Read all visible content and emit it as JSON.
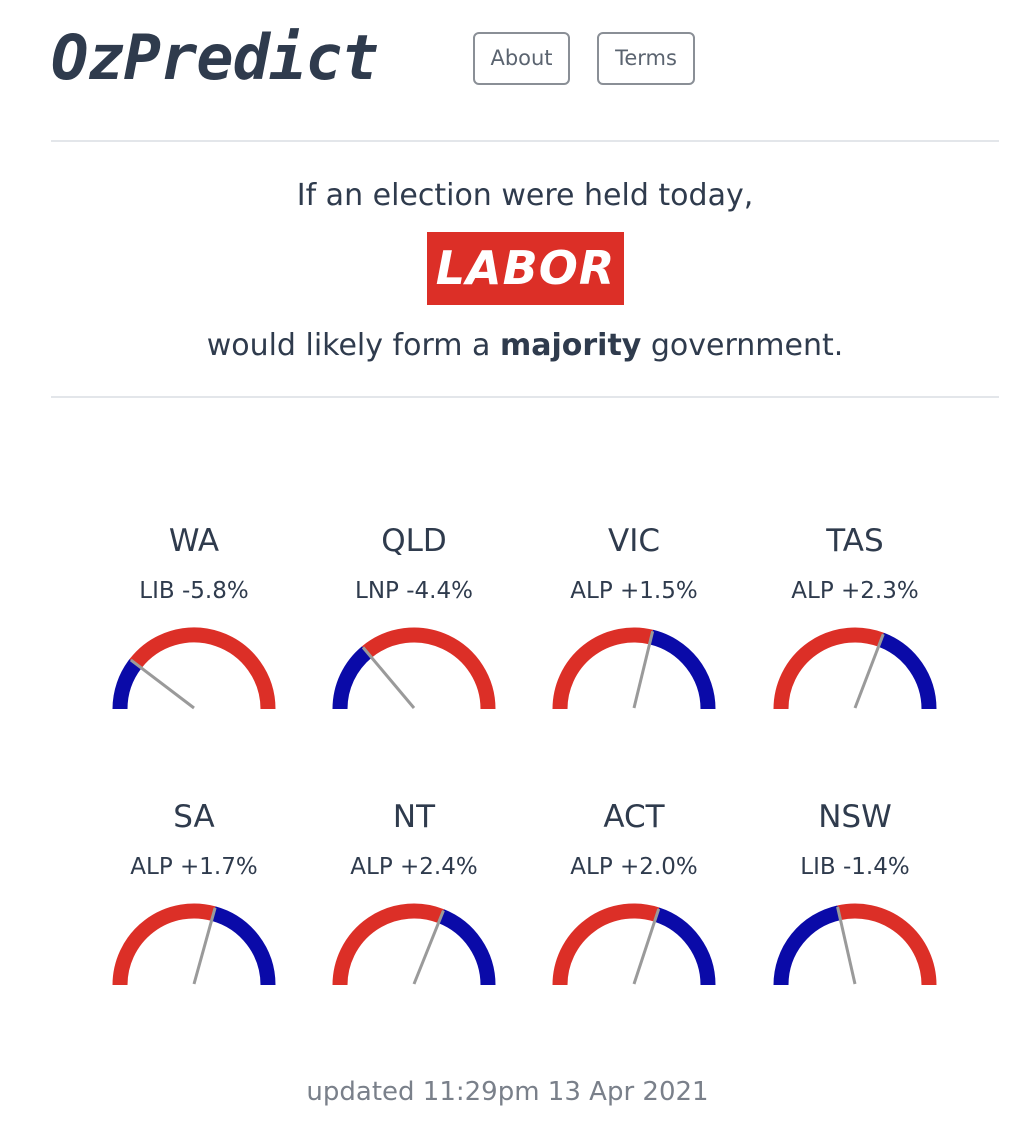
{
  "header": {
    "logo": "OzPredict",
    "nav": [
      {
        "label": "About"
      },
      {
        "label": "Terms"
      }
    ]
  },
  "headline": {
    "intro": "If an election were held today,",
    "party": "LABOR",
    "outcome_pre": "would likely form a ",
    "outcome_bold": "majority",
    "outcome_post": " government."
  },
  "colors": {
    "alp_red": "#dc2f27",
    "coalition_blue": "#0a0aa8",
    "needle_gray": "#9a9a9a"
  },
  "states": [
    {
      "name": "WA",
      "party": "LIB",
      "swing": "-5.8%",
      "value": -5.8
    },
    {
      "name": "QLD",
      "party": "LNP",
      "swing": "-4.4%",
      "value": -4.4
    },
    {
      "name": "VIC",
      "party": "ALP",
      "swing": "+1.5%",
      "value": 1.5
    },
    {
      "name": "TAS",
      "party": "ALP",
      "swing": "+2.3%",
      "value": 2.3
    },
    {
      "name": "SA",
      "party": "ALP",
      "swing": "+1.7%",
      "value": 1.7
    },
    {
      "name": "NT",
      "party": "ALP",
      "swing": "+2.4%",
      "value": 2.4
    },
    {
      "name": "ACT",
      "party": "ALP",
      "swing": "+2.0%",
      "value": 2.0
    },
    {
      "name": "NSW",
      "party": "LIB",
      "swing": "-1.4%",
      "value": -1.4
    }
  ],
  "footer": {
    "updated": "updated 11:29pm 13 Apr 2021"
  }
}
